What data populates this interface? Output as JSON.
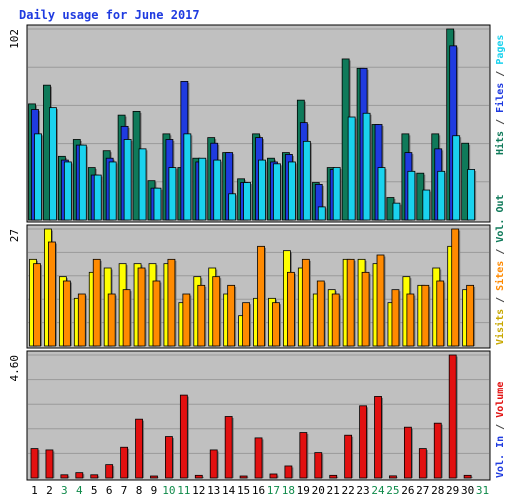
{
  "chart_data": {
    "type": "bar",
    "title": "Daily usage for June 2017",
    "categories": [
      "1",
      "2",
      "3",
      "4",
      "5",
      "6",
      "7",
      "8",
      "9",
      "10",
      "11",
      "12",
      "13",
      "14",
      "15",
      "16",
      "17",
      "18",
      "19",
      "20",
      "21",
      "22",
      "23",
      "24",
      "25",
      "26",
      "27",
      "28",
      "29",
      "30",
      "31"
    ],
    "weekend_days": [
      "3",
      "4",
      "10",
      "11",
      "17",
      "18",
      "24",
      "25",
      "31"
    ],
    "panels": [
      {
        "scale_label": "102",
        "ylim": [
          0,
          102
        ],
        "series": [
          {
            "name": "Hits",
            "color": "#0f7a5a",
            "values": [
              62,
              72,
              34,
              43,
              28,
              37,
              56,
              58,
              21,
              46,
              28,
              33,
              44,
              36,
              22,
              46,
              33,
              36,
              64,
              20,
              28,
              86,
              81,
              51,
              12,
              46,
              25,
              46,
              102,
              41,
              0
            ]
          },
          {
            "name": "Files",
            "color": "#1f3be0",
            "values": [
              59,
              0,
              32,
              40,
              24,
              33,
              50,
              0,
              17,
              43,
              74,
              31,
              41,
              36,
              20,
              44,
              31,
              35,
              52,
              19,
              27,
              0,
              81,
              51,
              0,
              36,
              0,
              38,
              93,
              0,
              0
            ]
          },
          {
            "name": "Pages",
            "color": "#1ad2ee",
            "values": [
              46,
              60,
              31,
              40,
              24,
              31,
              43,
              38,
              17,
              28,
              46,
              33,
              32,
              14,
              20,
              32,
              30,
              31,
              42,
              7,
              28,
              55,
              57,
              28,
              9,
              26,
              16,
              26,
              45,
              27,
              0
            ]
          }
        ]
      },
      {
        "scale_label": "27",
        "ylim": [
          0,
          27
        ],
        "series": [
          {
            "name": "Visits",
            "color": "#ffff00",
            "values": [
              20,
              27,
              16,
              11,
              17,
              18,
              19,
              19,
              19,
              19,
              10,
              16,
              18,
              12,
              7,
              11,
              11,
              22,
              18,
              12,
              13,
              20,
              20,
              19,
              10,
              16,
              14,
              18,
              23,
              13,
              0
            ]
          },
          {
            "name": "Sites",
            "color": "#ff8a00",
            "values": [
              19,
              24,
              15,
              12,
              20,
              12,
              13,
              18,
              15,
              20,
              12,
              14,
              16,
              14,
              10,
              23,
              10,
              17,
              20,
              15,
              12,
              20,
              17,
              21,
              13,
              12,
              14,
              15,
              27,
              14,
              0
            ]
          }
        ]
      },
      {
        "scale_label": "4.60",
        "ylim": [
          0,
          4.6
        ],
        "series": [
          {
            "name": "Volume",
            "color": "#e21010",
            "values": [
              1.1,
              1.05,
              0.12,
              0.2,
              0.12,
              0.5,
              1.15,
              2.2,
              0.07,
              1.55,
              3.1,
              0.1,
              1.05,
              2.3,
              0.07,
              1.5,
              0.15,
              0.45,
              1.7,
              0.95,
              0.1,
              1.6,
              2.7,
              3.05,
              0.08,
              1.9,
              1.1,
              2.05,
              4.6,
              0.1,
              0
            ]
          }
        ]
      }
    ],
    "legend_right": [
      [
        {
          "text": "Hits",
          "color": "#0f7a5a"
        },
        {
          "text": " / ",
          "color": "#444444"
        },
        {
          "text": "Files",
          "color": "#1f3be0"
        },
        {
          "text": " / ",
          "color": "#444444"
        },
        {
          "text": "Pages",
          "color": "#1ad2ee"
        }
      ],
      [
        {
          "text": "Visits",
          "color": "#c8a800"
        },
        {
          "text": " / ",
          "color": "#444444"
        },
        {
          "text": "Sites",
          "color": "#ff8a00"
        },
        {
          "text": " / ",
          "color": "#444444"
        },
        {
          "text": "Vol. Out",
          "color": "#0f7a5a"
        }
      ],
      [
        {
          "text": "Vol. In",
          "color": "#1f3be0"
        },
        {
          "text": " / ",
          "color": "#444444"
        },
        {
          "text": "Volume",
          "color": "#e21010"
        }
      ]
    ]
  }
}
